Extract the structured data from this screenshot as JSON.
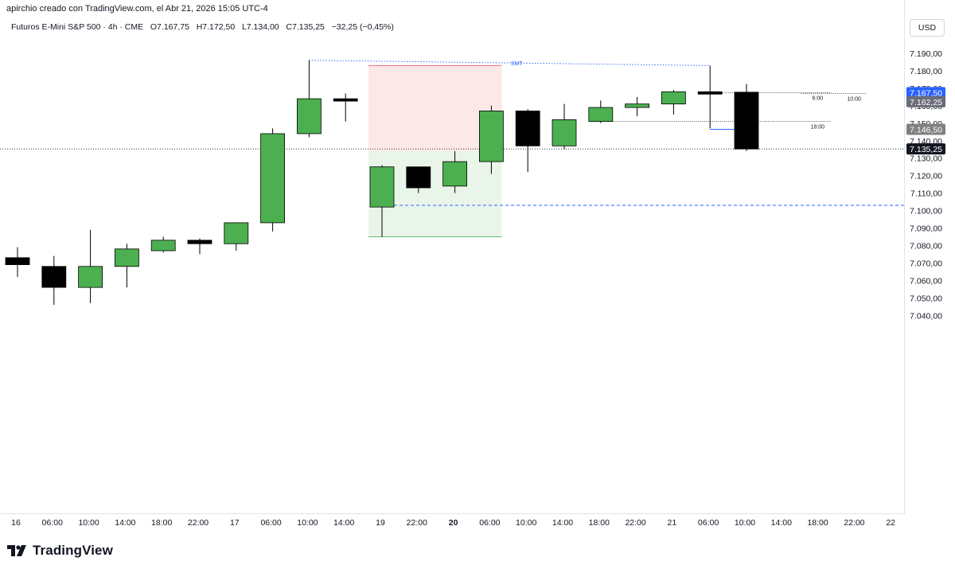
{
  "header": {
    "credit": "apirchio creado con TradingView.com, el Abr 21, 2026 15:05 UTC-4",
    "symbol": "Futuros E-Mini S&P 500 · 4h · CME",
    "open": "O7.167,75",
    "high": "H7.172,50",
    "low": "L7.134,00",
    "close": "C7.135,25",
    "change": "−32,25 (−0,45%)"
  },
  "currency_button": "USD",
  "footer": {
    "brand": "TradingView"
  },
  "colors": {
    "up": "#4caf50",
    "down": "#000000",
    "wick": "#000000",
    "stop_zone": "#fde8e8",
    "stop_line": "#e57373",
    "target_zone": "#eaf5ea",
    "target_line": "#66bb6a",
    "blue_line": "#2962ff",
    "last_price_bg": "#131722",
    "marker_blue": "#2962ff",
    "marker_gray": "#6a6d78",
    "marker_gray2": "#808080"
  },
  "chart_data": {
    "type": "candlestick",
    "x_ticks": [
      "16",
      "06:00",
      "10:00",
      "14:00",
      "18:00",
      "22:00",
      "17",
      "06:00",
      "10:00",
      "14:00",
      "19",
      "22:00",
      "20",
      "06:00",
      "10:00",
      "14:00",
      "18:00",
      "22:00",
      "21",
      "06:00",
      "10:00",
      "14:00",
      "18:00",
      "22:00",
      "22"
    ],
    "x_ticks_bold": [
      12
    ],
    "y_ticks": [
      "7.190,00",
      "7.180,00",
      "7.170,00",
      "7.160,00",
      "7.150,00",
      "7.140,00",
      "7.130,00",
      "7.120,00",
      "7.110,00",
      "7.100,00",
      "7.090,00",
      "7.080,00",
      "7.070,00",
      "7.060,00",
      "7.050,00",
      "7.040,00"
    ],
    "y_tick_values": [
      7190,
      7180,
      7170,
      7160,
      7150,
      7140,
      7130,
      7120,
      7110,
      7100,
      7090,
      7080,
      7070,
      7060,
      7050,
      7040
    ],
    "candles": [
      {
        "slot": 0,
        "o": 7073,
        "h": 7079,
        "l": 7062,
        "c": 7069
      },
      {
        "slot": 1,
        "o": 7068,
        "h": 7074,
        "l": 7046,
        "c": 7056
      },
      {
        "slot": 2,
        "o": 7056,
        "h": 7089,
        "l": 7047,
        "c": 7068
      },
      {
        "slot": 3,
        "o": 7068,
        "h": 7081,
        "l": 7056,
        "c": 7078
      },
      {
        "slot": 4,
        "o": 7077,
        "h": 7085,
        "l": 7076,
        "c": 7083
      },
      {
        "slot": 5,
        "o": 7083,
        "h": 7084,
        "l": 7075,
        "c": 7081
      },
      {
        "slot": 6,
        "o": 7081,
        "h": 7093,
        "l": 7077,
        "c": 7093
      },
      {
        "slot": 7,
        "o": 7093,
        "h": 7147,
        "l": 7088,
        "c": 7144
      },
      {
        "slot": 8,
        "o": 7144,
        "h": 7186,
        "l": 7142,
        "c": 7164
      },
      {
        "slot": 9,
        "o": 7164,
        "h": 7167,
        "l": 7151,
        "c": 7164
      },
      {
        "slot": 10,
        "o": 7102,
        "h": 7126,
        "l": 7085,
        "c": 7125
      },
      {
        "slot": 11,
        "o": 7125,
        "h": 7125,
        "l": 7110,
        "c": 7113
      },
      {
        "slot": 12,
        "o": 7114,
        "h": 7134,
        "l": 7110,
        "c": 7128
      },
      {
        "slot": 13,
        "o": 7128,
        "h": 7160,
        "l": 7121,
        "c": 7157
      },
      {
        "slot": 14,
        "o": 7157,
        "h": 7158,
        "l": 7122,
        "c": 7137
      },
      {
        "slot": 15,
        "o": 7137,
        "h": 7161,
        "l": 7135,
        "c": 7152
      },
      {
        "slot": 16,
        "o": 7151,
        "h": 7163,
        "l": 7150,
        "c": 7159
      },
      {
        "slot": 17,
        "o": 7159,
        "h": 7165,
        "l": 7154,
        "c": 7161
      },
      {
        "slot": 18,
        "o": 7161,
        "h": 7169,
        "l": 7155,
        "c": 7168
      },
      {
        "slot": 19,
        "o": 7168,
        "h": 7183,
        "l": 7147,
        "c": 7167
      },
      {
        "slot": 20,
        "o": 7167.75,
        "h": 7172.5,
        "l": 7134,
        "c": 7135.25
      }
    ],
    "position": {
      "slot_start": 10,
      "slot_end": 13,
      "stop": 7183,
      "entry": 7134,
      "target": 7085
    },
    "smt": {
      "label": "SMT",
      "from_slot": 8,
      "from_price": 7186,
      "to_slot": 19,
      "to_price": 7183
    },
    "blue_dashed_level": 7103,
    "blue_segment": {
      "price": 7146.5,
      "from_slot": 19,
      "to_slot": 20
    },
    "dotted_levels": [
      {
        "price": 7167.5,
        "from_slot": 19,
        "to_x_slot": 22.3,
        "label": "6:00"
      },
      {
        "price": 7167,
        "from_slot": 21.5,
        "to_x_slot": 23.3,
        "label": "10:00"
      },
      {
        "price": 7151,
        "from_slot": 16,
        "to_x_slot": 22.3,
        "label": "18:00"
      }
    ],
    "last_price_line": 7135.25,
    "price_markers": [
      {
        "price": 7167.5,
        "label": "7.167,50",
        "color": "blue"
      },
      {
        "price": 7162.25,
        "label": "7.162,25",
        "color": "gray"
      },
      {
        "price": 7146.5,
        "label": "7.146,50",
        "color": "gray2"
      },
      {
        "price": 7135.25,
        "label": "7.135,25",
        "color": "dark"
      }
    ]
  }
}
